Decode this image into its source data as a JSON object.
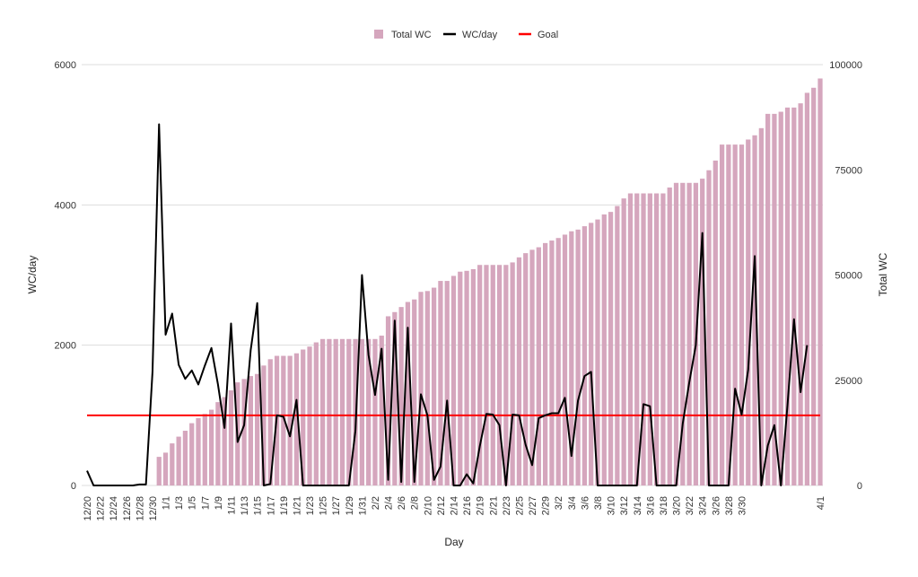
{
  "chart_data": {
    "type": "bar+line",
    "title": "",
    "legend": {
      "placement": "top-center",
      "entries": [
        {
          "name": "Total WC",
          "kind": "bar"
        },
        {
          "name": "WC/day",
          "kind": "line"
        },
        {
          "name": "Goal",
          "kind": "line"
        }
      ]
    },
    "colors": {
      "total_wc": "#d5a6bd",
      "wc_day": "#000000",
      "goal": "#ff0000",
      "grid": "#dddddd"
    },
    "xlabel": "Day",
    "ylabel_left": "WC/day",
    "ylabel_right": "Total WC",
    "ylim_left": [
      0,
      6000
    ],
    "ylim_right": [
      0,
      100000
    ],
    "yticks_left": [
      "0",
      "2000",
      "4000",
      "6000"
    ],
    "yticks_right": [
      "0",
      "25000",
      "50000",
      "75000",
      "100000"
    ],
    "xtick_labels": [
      "12/20",
      "12/22",
      "12/24",
      "12/26",
      "12/28",
      "12/30",
      "1/1",
      "1/3",
      "1/5",
      "1/7",
      "1/9",
      "1/11",
      "1/13",
      "1/15",
      "1/17",
      "1/19",
      "1/21",
      "1/23",
      "1/25",
      "1/27",
      "1/29",
      "1/31",
      "2/2",
      "2/4",
      "2/6",
      "2/8",
      "2/10",
      "2/12",
      "2/14",
      "2/16",
      "2/19",
      "2/21",
      "2/23",
      "2/25",
      "2/27",
      "2/29",
      "3/2",
      "3/4",
      "3/6",
      "3/8",
      "3/10",
      "3/12",
      "3/14",
      "3/16",
      "3/18",
      "3/20",
      "3/22",
      "3/24",
      "3/26",
      "3/28",
      "3/30",
      "4/1"
    ],
    "goal": 1000,
    "series": [
      {
        "name": "Total WC",
        "axis": "right",
        "values": [
          0,
          0,
          0,
          0,
          0,
          0,
          0,
          0,
          0,
          0,
          0,
          6800,
          7800,
          10000,
          11600,
          13000,
          14800,
          16000,
          17000,
          18000,
          19800,
          21000,
          22600,
          24500,
          25300,
          26000,
          26500,
          28500,
          30000,
          30800,
          30800,
          30800,
          31400,
          32300,
          33000,
          34000,
          34800,
          34800,
          34800,
          34800,
          34800,
          34800,
          34800,
          34800,
          34800,
          35600,
          40200,
          41200,
          42400,
          43600,
          44200,
          46000,
          46200,
          47000,
          48600,
          48600,
          49800,
          50800,
          51000,
          51400,
          52400,
          52400,
          52400,
          52400,
          52400,
          53000,
          54200,
          55200,
          56000,
          56600,
          57600,
          58200,
          58800,
          59600,
          60400,
          60800,
          61600,
          62400,
          63200,
          64400,
          65000,
          66400,
          68200,
          69400,
          69400,
          69400,
          69400,
          69400,
          69400,
          70800,
          71900,
          71900,
          71900,
          71900,
          72900,
          74900,
          77200,
          81000,
          81000,
          81000,
          81000,
          82200,
          83200,
          84900,
          88300,
          88300,
          88800,
          89800,
          89800,
          90800,
          93300,
          94500,
          96700
        ]
      },
      {
        "name": "WC/day",
        "axis": "left",
        "values": [
          210,
          0,
          0,
          0,
          0,
          0,
          0,
          0,
          15,
          15,
          1620,
          5150,
          2150,
          2450,
          1720,
          1520,
          1640,
          1440,
          1710,
          1960,
          1440,
          820,
          2310,
          620,
          860,
          1930,
          2600,
          0,
          20,
          1000,
          980,
          700,
          1220,
          0,
          0,
          0,
          0,
          0,
          0,
          0,
          0,
          780,
          3000,
          1860,
          1290,
          1950,
          80,
          2350,
          50,
          2250,
          50,
          1300,
          1000,
          80,
          270,
          1210,
          0,
          0,
          160,
          30,
          560,
          1020,
          1010,
          860,
          0,
          1010,
          1000,
          580,
          290,
          960,
          1000,
          1030,
          1030,
          1250,
          420,
          1210,
          1560,
          1620,
          0,
          0,
          0,
          0,
          0,
          0,
          0,
          1160,
          1130,
          0,
          0,
          0,
          0,
          880,
          1470,
          2000,
          3600,
          0,
          0,
          0,
          0,
          1380,
          1010,
          1650,
          3270,
          0,
          570,
          860,
          0,
          1140,
          2370,
          1330,
          2000
        ]
      },
      {
        "name": "Goal",
        "axis": "left",
        "value": 1000
      }
    ]
  }
}
